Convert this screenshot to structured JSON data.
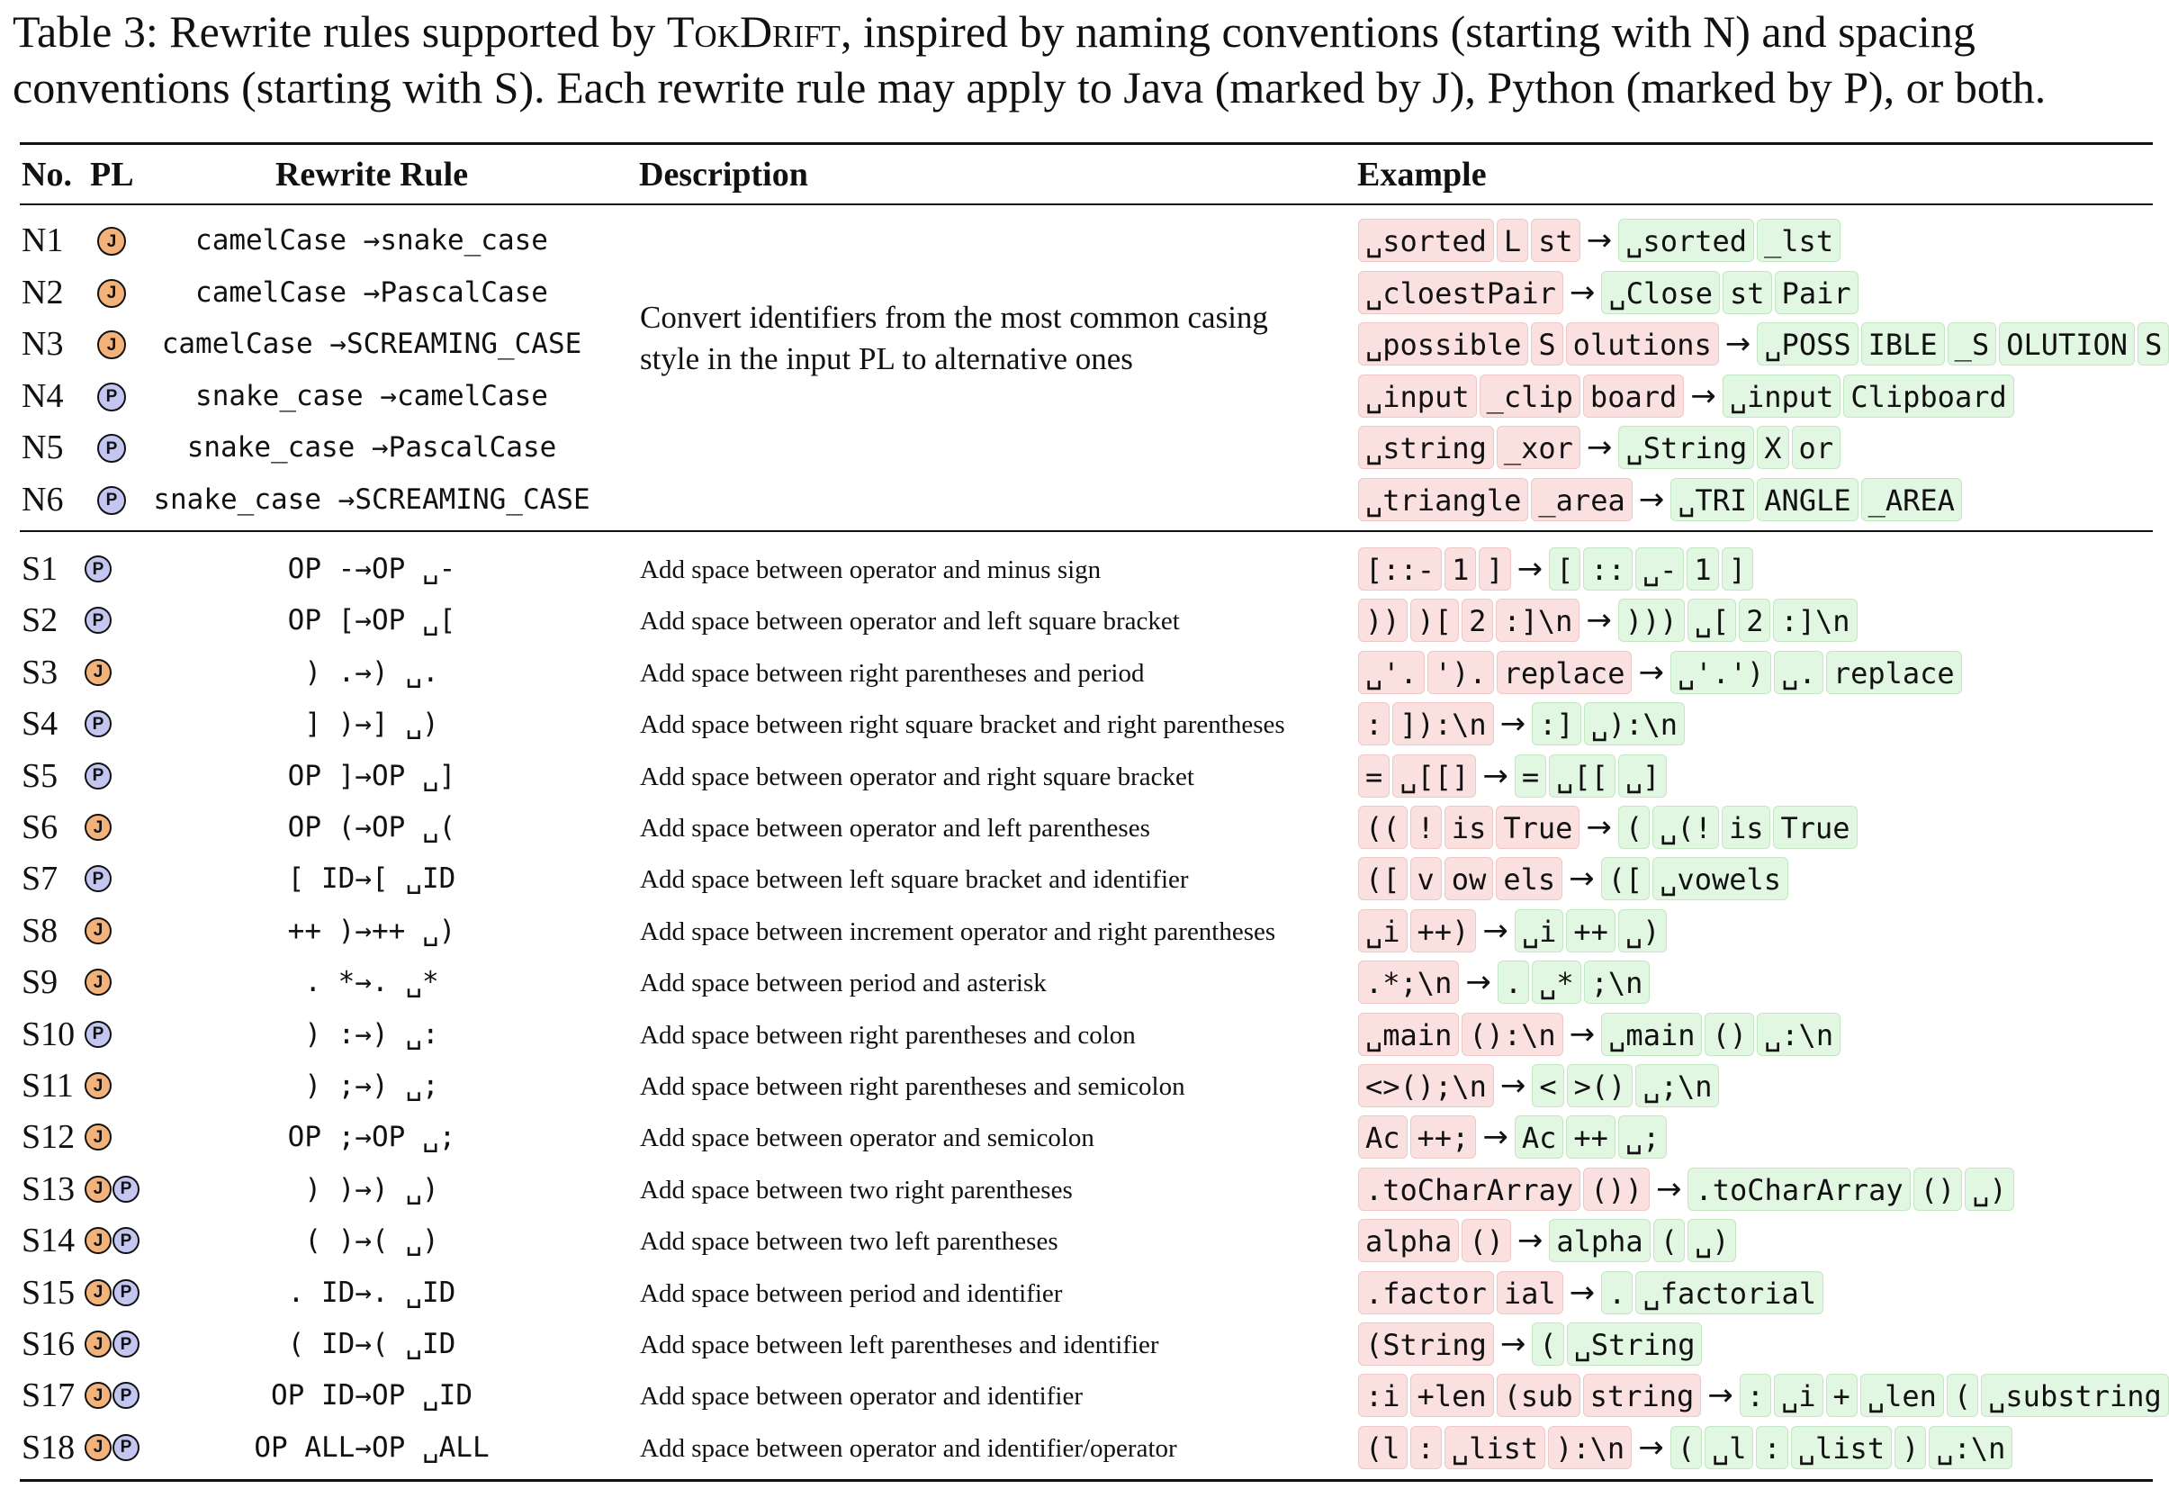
{
  "caption": {
    "prefix": "Table 3: Rewrite rules supported by ",
    "tool": "TokDrift",
    "line1_rest": ", inspired by naming conventions (starting with N) and spacing",
    "line2": "conventions (starting with S). Each rewrite rule may apply to Java (marked by J), Python (marked by P), or both."
  },
  "headers": {
    "no": "No.",
    "pl": "PL",
    "rule": "Rewrite Rule",
    "description": "Description",
    "example": "Example"
  },
  "arrow": "→",
  "naming_description": "Convert identifiers from the most common casing style in the input PL to alternative ones",
  "colors": {
    "java_badge": "#f2b27a",
    "python_badge": "#c3c6f0",
    "old_token_bg": "#fbe0e0",
    "new_token_bg": "#e2f7e2"
  },
  "naming_rules": [
    {
      "no": "N1",
      "pl": [
        "J"
      ],
      "rule": "camelCase →snake_case",
      "before": [
        "␣sorted",
        "L",
        "st"
      ],
      "after": [
        "␣sorted",
        "_lst"
      ]
    },
    {
      "no": "N2",
      "pl": [
        "J"
      ],
      "rule": "camelCase →PascalCase",
      "before": [
        "␣cloestPair"
      ],
      "after": [
        "␣Close",
        "st",
        "Pair"
      ]
    },
    {
      "no": "N3",
      "pl": [
        "J"
      ],
      "rule": "camelCase →SCREAMING_CASE",
      "before": [
        "␣possible",
        "S",
        "olutions"
      ],
      "after": [
        "␣POSS",
        "IBLE",
        "_S",
        "OLUTION",
        "S"
      ]
    },
    {
      "no": "N4",
      "pl": [
        "P"
      ],
      "rule": "snake_case →camelCase",
      "before": [
        "␣input",
        "_clip",
        "board"
      ],
      "after": [
        "␣input",
        "Clipboard"
      ]
    },
    {
      "no": "N5",
      "pl": [
        "P"
      ],
      "rule": "snake_case →PascalCase",
      "before": [
        "␣string",
        "_xor"
      ],
      "after": [
        "␣String",
        "X",
        "or"
      ]
    },
    {
      "no": "N6",
      "pl": [
        "P"
      ],
      "rule": "snake_case →SCREAMING_CASE",
      "before": [
        "␣triangle",
        "_area"
      ],
      "after": [
        "␣TRI",
        "ANGLE",
        "_AREA"
      ]
    }
  ],
  "spacing_rules": [
    {
      "no": "S1",
      "pl": [
        "P"
      ],
      "rule": "OP -→OP ␣-",
      "description": "Add space between operator and minus sign",
      "before": [
        "[::-",
        "1",
        "]"
      ],
      "after": [
        "[",
        "::",
        "␣-",
        "1",
        "]"
      ]
    },
    {
      "no": "S2",
      "pl": [
        "P"
      ],
      "rule": "OP [→OP ␣[",
      "description": "Add space between operator and left square bracket",
      "before": [
        "))",
        ")[",
        "2",
        ":]\\n"
      ],
      "after": [
        ")))",
        "␣[",
        "2",
        ":]\\n"
      ]
    },
    {
      "no": "S3",
      "pl": [
        "J"
      ],
      "rule": ") .→) ␣.",
      "description": "Add space between right parentheses and period",
      "before": [
        "␣'.",
        "').",
        "replace"
      ],
      "after": [
        "␣'.')",
        "␣.",
        "replace"
      ]
    },
    {
      "no": "S4",
      "pl": [
        "P"
      ],
      "rule": "] )→] ␣)",
      "description": "Add space between right square bracket and right parentheses",
      "before": [
        ":",
        "]):\\n"
      ],
      "after": [
        ":]",
        "␣):\\n"
      ]
    },
    {
      "no": "S5",
      "pl": [
        "P"
      ],
      "rule": "OP ]→OP ␣]",
      "description": "Add space between operator and right square bracket",
      "before": [
        "=",
        "␣[[]"
      ],
      "after": [
        "=",
        "␣[[",
        "␣]"
      ]
    },
    {
      "no": "S6",
      "pl": [
        "J"
      ],
      "rule": "OP (→OP  ␣(",
      "description": "Add space between operator and left parentheses",
      "before": [
        "((",
        "!",
        "is",
        "True"
      ],
      "after": [
        "(",
        "␣(!",
        "is",
        "True"
      ]
    },
    {
      "no": "S7",
      "pl": [
        "P"
      ],
      "rule": "[ ID→[ ␣ID",
      "description": "Add space between left square bracket and identifier",
      "before": [
        "([",
        "v",
        "ow",
        "els"
      ],
      "after": [
        "([",
        "␣vowels"
      ]
    },
    {
      "no": "S8",
      "pl": [
        "J"
      ],
      "rule": "++ )→++ ␣)",
      "description": "Add space between increment operator and right parentheses",
      "before": [
        "␣i",
        "++)"
      ],
      "after": [
        "␣i",
        "++",
        "␣)"
      ]
    },
    {
      "no": "S9",
      "pl": [
        "J"
      ],
      "rule": ". *→. ␣*",
      "description": "Add space between period and asterisk",
      "before": [
        ".*;\\n"
      ],
      "after": [
        ".",
        "␣*",
        ";\\n"
      ]
    },
    {
      "no": "S10",
      "pl": [
        "P"
      ],
      "rule": ") :→) ␣:",
      "description": "Add space between right parentheses and colon",
      "before": [
        "␣main",
        "():\\n"
      ],
      "after": [
        "␣main",
        "()",
        "␣:\\n"
      ]
    },
    {
      "no": "S11",
      "pl": [
        "J"
      ],
      "rule": ") ;→) ␣;",
      "description": "Add space between right parentheses and semicolon",
      "before": [
        "<>();\\n"
      ],
      "after": [
        "<",
        ">()",
        "␣;\\n"
      ]
    },
    {
      "no": "S12",
      "pl": [
        "J"
      ],
      "rule": "OP ;→OP ␣;",
      "description": "Add space between operator and semicolon",
      "before": [
        "Ac",
        "++;"
      ],
      "after": [
        "Ac",
        "++",
        "␣;"
      ]
    },
    {
      "no": "S13",
      "pl": [
        "J",
        "P"
      ],
      "rule": ") )→) ␣)",
      "description": "Add space between two right parentheses",
      "before": [
        ".toCharArray",
        "())"
      ],
      "after": [
        ".toCharArray",
        "()",
        "␣)"
      ]
    },
    {
      "no": "S14",
      "pl": [
        "J",
        "P"
      ],
      "rule": "( )→( ␣)",
      "description": "Add space between two left parentheses",
      "before": [
        "alpha",
        "()"
      ],
      "after": [
        "alpha",
        "(",
        "␣)"
      ]
    },
    {
      "no": "S15",
      "pl": [
        "J",
        "P"
      ],
      "rule": ". ID→. ␣ID",
      "description": "Add space between period and identifier",
      "before": [
        ".factor",
        "ial"
      ],
      "after": [
        ".",
        "␣factorial"
      ]
    },
    {
      "no": "S16",
      "pl": [
        "J",
        "P"
      ],
      "rule": "( ID→( ␣ID",
      "description": "Add space between left parentheses and identifier",
      "before": [
        "(String"
      ],
      "after": [
        "(",
        "␣String"
      ]
    },
    {
      "no": "S17",
      "pl": [
        "J",
        "P"
      ],
      "rule": "OP ID→OP ␣ID",
      "description": "Add space between operator and identifier",
      "before": [
        ":i",
        "+len",
        "(sub",
        "string"
      ],
      "after": [
        ":",
        "␣i",
        "+",
        "␣len",
        "(",
        "␣substring"
      ]
    },
    {
      "no": "S18",
      "pl": [
        "J",
        "P"
      ],
      "rule": "OP ALL→OP ␣ALL",
      "description": "Add space between operator and identifier/operator",
      "before": [
        "(l",
        ":",
        "␣list",
        "):\\n"
      ],
      "after": [
        "(",
        "␣l",
        ":",
        "␣list",
        ")",
        "␣:\\n"
      ]
    }
  ]
}
